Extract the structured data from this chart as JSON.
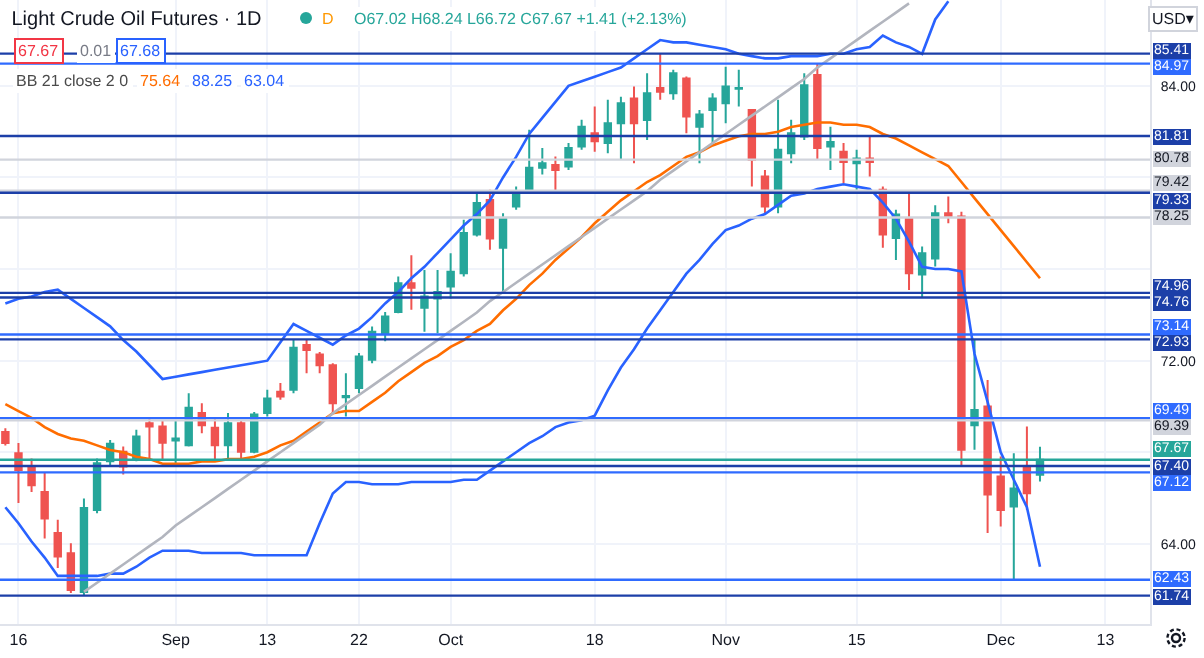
{
  "chart_data": {
    "type": "candlestick",
    "title": "Light Crude Oil Futures · 1D",
    "annotations": [
      "O67.02 H68.24 L66.72 C67.67 +1.41 (+2.13%)",
      "D",
      "67.67",
      "0.01",
      "67.68",
      "BB 21 close 2 0",
      "75.64",
      "88.25",
      "63.04",
      "USD▾"
    ],
    "categories": [
      null,
      "16",
      null,
      null,
      null,
      null,
      null,
      null,
      null,
      null,
      null,
      null,
      null,
      "Sep",
      null,
      null,
      null,
      null,
      null,
      null,
      "13",
      null,
      null,
      null,
      null,
      null,
      null,
      "22",
      null,
      null,
      null,
      null,
      null,
      null,
      "Oct",
      null,
      null,
      null,
      null,
      null,
      null,
      null,
      null,
      null,
      null,
      "18",
      null,
      null,
      null,
      null,
      null,
      null,
      null,
      null,
      null,
      "Nov",
      null,
      null,
      null,
      null,
      null,
      null,
      null,
      null,
      null,
      "15",
      null,
      null,
      null,
      null,
      null,
      null,
      null,
      null,
      null,
      null,
      "Dec",
      null,
      null,
      null,
      null,
      null,
      null,
      null,
      "13",
      null,
      null,
      null
    ],
    "ohlc": [
      [
        68.89,
        69.05,
        68.3,
        68.4
      ],
      [
        67.96,
        68.4,
        65.78,
        67.23
      ],
      [
        67.38,
        67.73,
        66.27,
        66.56
      ],
      [
        66.27,
        67.09,
        64.23,
        65.11
      ],
      [
        64.47,
        65.05,
        62.95,
        63.45
      ],
      [
        63.59,
        64.03,
        61.85,
        61.99
      ],
      [
        61.9,
        65.98,
        61.74,
        65.57
      ],
      [
        65.48,
        67.73,
        65.34,
        67.52
      ],
      [
        67.61,
        68.54,
        67.38,
        68.37
      ],
      [
        68.02,
        68.25,
        67.03,
        67.38
      ],
      [
        67.73,
        68.98,
        67.61,
        68.69
      ],
      [
        69.27,
        69.47,
        67.67,
        69.12
      ],
      [
        69.12,
        69.36,
        67.67,
        68.42
      ],
      [
        68.51,
        69.41,
        67.38,
        68.6
      ],
      [
        68.31,
        70.58,
        68.25,
        69.94
      ],
      [
        69.71,
        70.14,
        68.83,
        69.18
      ],
      [
        69.07,
        69.47,
        67.67,
        68.31
      ],
      [
        68.31,
        69.71,
        67.67,
        69.27
      ],
      [
        69.27,
        69.41,
        67.67,
        68.02
      ],
      [
        68.02,
        69.76,
        67.96,
        69.65
      ],
      [
        69.71,
        70.73,
        69.56,
        70.35
      ],
      [
        70.64,
        71.02,
        70.29,
        70.43
      ],
      [
        70.73,
        72.91,
        70.58,
        72.56
      ],
      [
        72.68,
        72.91,
        71.45,
        72.47
      ],
      [
        72.27,
        72.38,
        71.45,
        71.8
      ],
      [
        71.8,
        71.89,
        69.71,
        70.14
      ],
      [
        70.4,
        71.45,
        69.56,
        70.46
      ],
      [
        70.81,
        72.33,
        70.58,
        72.18
      ],
      [
        72.04,
        73.49,
        71.89,
        73.26
      ],
      [
        73.2,
        74.13,
        72.85,
        73.93
      ],
      [
        74.13,
        75.67,
        74.07,
        75.38
      ],
      [
        75.38,
        76.6,
        74.22,
        75.18
      ],
      [
        74.31,
        75.96,
        73.26,
        74.8
      ],
      [
        74.71,
        75.96,
        73.2,
        75.0
      ],
      [
        75.24,
        76.69,
        74.71,
        75.88
      ],
      [
        75.82,
        78.15,
        75.67,
        77.57
      ],
      [
        77.51,
        79.31,
        77.42,
        78.88
      ],
      [
        79.02,
        79.46,
        76.84,
        77.33
      ],
      [
        76.93,
        78.44,
        74.96,
        78.21
      ],
      [
        78.73,
        79.6,
        78.59,
        79.31
      ],
      [
        79.46,
        82.08,
        79.31,
        80.42
      ],
      [
        80.42,
        81.29,
        80.13,
        80.62
      ],
      [
        80.54,
        80.91,
        79.31,
        80.33
      ],
      [
        80.48,
        81.5,
        80.33,
        81.29
      ],
      [
        81.35,
        82.52,
        81.21,
        82.22
      ],
      [
        81.93,
        83.1,
        81.12,
        81.58
      ],
      [
        81.5,
        83.39,
        81.06,
        82.37
      ],
      [
        82.37,
        83.53,
        80.77,
        83.24
      ],
      [
        83.45,
        83.97,
        80.62,
        82.37
      ],
      [
        82.51,
        84.55,
        81.64,
        83.68
      ],
      [
        83.91,
        85.41,
        83.39,
        83.74
      ],
      [
        83.68,
        84.7,
        83.39,
        84.55
      ],
      [
        84.32,
        84.41,
        81.93,
        82.66
      ],
      [
        82.22,
        82.95,
        80.62,
        82.75
      ],
      [
        82.95,
        83.68,
        81.5,
        83.45
      ],
      [
        83.24,
        84.84,
        82.37,
        83.97
      ],
      [
        83.87,
        84.7,
        83.1,
        83.91
      ],
      [
        82.95,
        82.95,
        79.6,
        80.77
      ],
      [
        80.04,
        80.33,
        78.44,
        78.73
      ],
      [
        78.73,
        83.39,
        78.44,
        81.21
      ],
      [
        81.06,
        82.52,
        80.62,
        81.93
      ],
      [
        81.79,
        84.55,
        81.64,
        84.03
      ],
      [
        84.47,
        84.97,
        80.77,
        81.29
      ],
      [
        81.35,
        82.22,
        80.33,
        81.55
      ],
      [
        81.12,
        81.5,
        79.75,
        80.68
      ],
      [
        80.62,
        81.21,
        79.46,
        80.83
      ],
      [
        80.83,
        81.81,
        80.04,
        80.68
      ],
      [
        79.46,
        79.6,
        76.93,
        77.51
      ],
      [
        77.36,
        78.59,
        76.4,
        78.38
      ],
      [
        78.21,
        79.33,
        75.09,
        75.82
      ],
      [
        75.76,
        76.98,
        74.76,
        76.69
      ],
      [
        76.46,
        78.79,
        76.11,
        78.44
      ],
      [
        78.44,
        79.17,
        78.0,
        78.29
      ],
      [
        78.29,
        78.5,
        67.4,
        68.11
      ],
      [
        69.18,
        72.93,
        68.11,
        69.85
      ],
      [
        70.0,
        71.16,
        64.47,
        66.15
      ],
      [
        66.94,
        67.82,
        64.76,
        65.48
      ],
      [
        65.63,
        67.96,
        62.43,
        66.42
      ],
      [
        67.38,
        69.12,
        65.48,
        66.21
      ],
      [
        67.02,
        68.24,
        66.72,
        67.67
      ],
      null,
      null,
      null,
      null,
      null,
      null,
      null,
      null
    ],
    "series": [
      {
        "type": "line",
        "color": "#2962ff",
        "values": [
          74.5,
          74.7,
          74.8,
          75.0,
          75.1,
          74.7,
          74.3,
          73.9,
          73.5,
          72.9,
          72.4,
          71.8,
          71.2,
          71.3,
          71.4,
          71.5,
          71.6,
          71.7,
          71.8,
          71.9,
          72.0,
          72.8,
          73.6,
          73.3,
          73.0,
          72.7,
          73.1,
          73.4,
          73.9,
          74.5,
          75.0,
          75.6,
          76.1,
          76.7,
          77.3,
          77.9,
          78.4,
          79.0,
          80.0,
          80.9,
          81.9,
          82.6,
          83.3,
          84.0,
          84.2,
          84.4,
          84.6,
          84.8,
          85.2,
          85.6,
          86.0,
          85.9,
          85.9,
          85.8,
          85.7,
          85.6,
          85.4,
          85.3,
          85.2,
          85.2,
          85.3,
          85.3,
          85.3,
          85.4,
          85.4,
          85.6,
          85.7,
          86.2,
          85.9,
          85.7,
          85.4,
          86.9,
          87.7,
          null,
          null,
          null,
          null,
          null,
          null,
          null,
          null,
          null,
          null,
          null,
          null,
          null,
          null,
          null
        ]
      },
      {
        "type": "line",
        "color": "#ff6d00",
        "values": [
          70.1,
          69.8,
          69.5,
          69.1,
          68.8,
          68.6,
          68.5,
          68.3,
          68.1,
          68.0,
          67.8,
          67.7,
          67.5,
          67.5,
          67.5,
          67.6,
          67.6,
          67.7,
          67.7,
          67.8,
          68.0,
          68.3,
          68.5,
          68.9,
          69.3,
          69.7,
          69.8,
          69.8,
          70.2,
          70.6,
          71.1,
          71.5,
          71.9,
          72.2,
          72.6,
          72.9,
          73.3,
          73.6,
          74.2,
          74.7,
          75.3,
          75.8,
          76.4,
          76.9,
          77.4,
          78.0,
          78.5,
          79.0,
          79.4,
          79.8,
          80.1,
          80.5,
          80.9,
          81.1,
          81.4,
          81.6,
          81.8,
          81.9,
          81.9,
          82.0,
          82.2,
          82.3,
          82.4,
          82.4,
          82.3,
          82.3,
          82.2,
          81.9,
          81.7,
          81.4,
          81.1,
          80.8,
          80.5,
          79.8,
          79.1,
          78.4,
          77.7,
          77.0,
          76.3,
          75.6,
          null,
          null,
          null,
          null,
          null,
          null,
          null,
          null
        ]
      },
      {
        "type": "line",
        "color": "#2962ff",
        "values": [
          65.6,
          64.9,
          64.1,
          63.4,
          62.6,
          62.6,
          62.6,
          62.6,
          62.7,
          62.7,
          63.0,
          63.4,
          63.7,
          63.7,
          63.7,
          63.6,
          63.6,
          63.6,
          63.6,
          63.5,
          63.5,
          63.5,
          63.5,
          63.5,
          64.9,
          66.2,
          66.7,
          66.7,
          66.6,
          66.6,
          66.6,
          66.7,
          66.7,
          66.7,
          66.7,
          66.8,
          66.8,
          67.2,
          67.6,
          68.0,
          68.4,
          68.7,
          69.1,
          69.3,
          69.4,
          69.6,
          70.7,
          71.7,
          72.5,
          73.4,
          74.2,
          75.0,
          75.8,
          76.4,
          77.1,
          77.7,
          77.9,
          78.2,
          78.4,
          78.8,
          79.2,
          79.3,
          79.5,
          79.6,
          79.7,
          79.6,
          79.5,
          78.9,
          78.2,
          77.2,
          76.1,
          76.0,
          76.0,
          75.9,
          72.3,
          70.2,
          68.0,
          66.8,
          65.6,
          63.0,
          null,
          null,
          null,
          null,
          null,
          null,
          null,
          null
        ]
      },
      {
        "type": "line",
        "color": "#b2b5be",
        "values": [
          null,
          null,
          null,
          null,
          null,
          null,
          61.9,
          62.3,
          62.7,
          63.1,
          63.5,
          63.9,
          64.3,
          64.8,
          65.2,
          65.6,
          66.0,
          66.4,
          66.8,
          67.2,
          67.6,
          68.0,
          68.4,
          68.8,
          69.2,
          69.7,
          70.1,
          70.5,
          70.9,
          71.3,
          71.7,
          72.1,
          72.5,
          72.9,
          73.3,
          73.7,
          74.1,
          74.6,
          75.0,
          75.4,
          75.8,
          76.2,
          76.6,
          77.0,
          77.4,
          77.8,
          78.2,
          78.6,
          79.0,
          79.4,
          79.9,
          80.3,
          80.7,
          81.1,
          81.5,
          81.9,
          82.3,
          82.7,
          83.1,
          83.5,
          83.9,
          84.3,
          84.8,
          85.2,
          85.6,
          86.0,
          86.4,
          86.8,
          87.2,
          87.6,
          null,
          null,
          null,
          null,
          null,
          null,
          null,
          null,
          null,
          null,
          null,
          null,
          null,
          null,
          null,
          null,
          null,
          null
        ]
      }
    ],
    "ylim": [
      60.5,
      87.75
    ],
    "yticks": [
      {
        "value": 64,
        "label": "64.00"
      },
      {
        "value": 68,
        "label": null
      },
      {
        "value": 72,
        "label": "72.00"
      },
      {
        "value": 76,
        "label": null
      },
      {
        "value": 80,
        "label": null
      },
      {
        "value": 84,
        "label": "84.00"
      }
    ],
    "grid": true,
    "ref_lines": [
      {
        "axis": "y",
        "value": 85.41,
        "label": "85.41",
        "color": "#1c3fa8"
      },
      {
        "axis": "y",
        "value": 84.97,
        "label": "84.97",
        "color": "#2f6bff"
      },
      {
        "axis": "y",
        "value": 81.81,
        "label": "81.81",
        "color": "#1c3fa8"
      },
      {
        "axis": "y",
        "value": 80.78,
        "label": "80.78",
        "color": "#d1d4dc"
      },
      {
        "axis": "y",
        "value": 79.42,
        "label": "79.42",
        "color": "#d1d4dc"
      },
      {
        "axis": "y",
        "value": 79.33,
        "label": "79.33",
        "color": "#1c3fa8"
      },
      {
        "axis": "y",
        "value": 78.25,
        "label": "78.25",
        "color": "#d1d4dc"
      },
      {
        "axis": "y",
        "value": 74.96,
        "label": "74.96",
        "color": "#1c3fa8"
      },
      {
        "axis": "y",
        "value": 74.76,
        "label": "74.76",
        "color": "#1c3fa8"
      },
      {
        "axis": "y",
        "value": 73.14,
        "label": "73.14",
        "color": "#2f6bff"
      },
      {
        "axis": "y",
        "value": 72.93,
        "label": "72.93",
        "color": "#1c3fa8"
      },
      {
        "axis": "y",
        "value": 69.49,
        "label": "69.49",
        "color": "#2f6bff"
      },
      {
        "axis": "y",
        "value": 69.39,
        "label": "69.39",
        "color": "#d1d4dc"
      },
      {
        "axis": "y",
        "value": 67.67,
        "label": "67.67",
        "color": "#26a69a"
      },
      {
        "axis": "y",
        "value": 67.4,
        "label": "67.40",
        "color": "#1c3fa8"
      },
      {
        "axis": "y",
        "value": 67.12,
        "label": "67.12",
        "color": "#2f6bff"
      },
      {
        "axis": "y",
        "value": 62.43,
        "label": "62.43",
        "color": "#2f6bff"
      },
      {
        "axis": "y",
        "value": 61.74,
        "label": "61.74",
        "color": "#1c3fa8"
      }
    ]
  }
}
